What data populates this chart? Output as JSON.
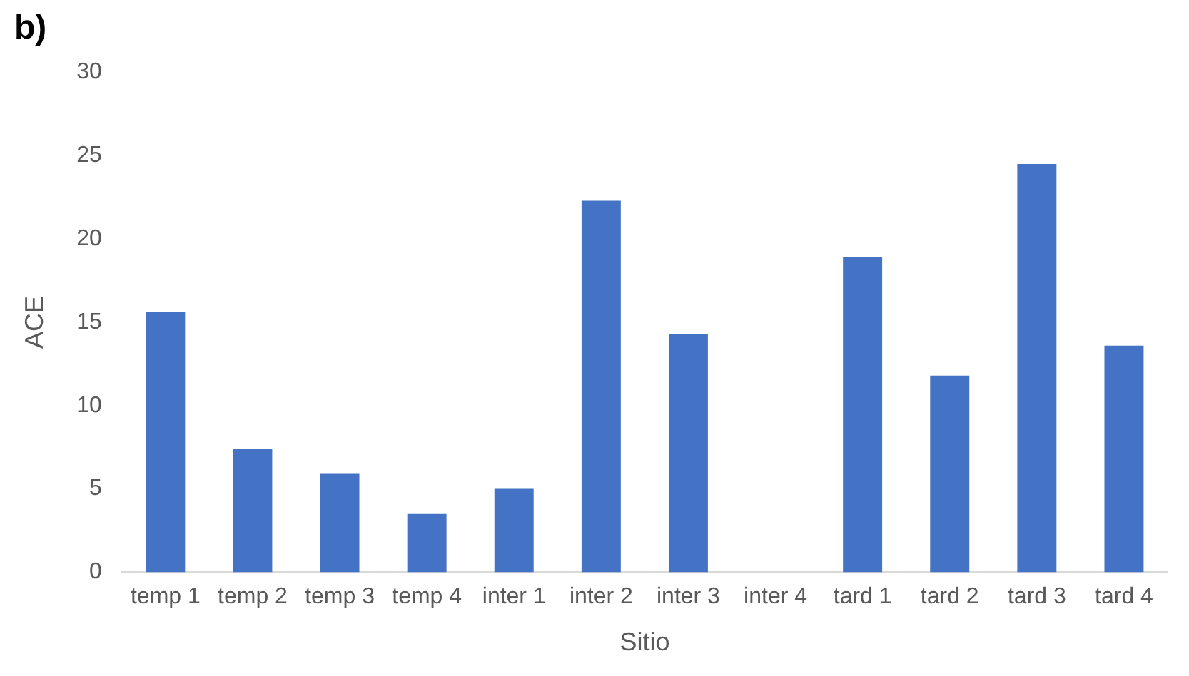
{
  "chart_data": {
    "type": "bar",
    "title": "b)",
    "xlabel": "Sitio",
    "ylabel": "ACE",
    "categories": [
      "temp 1",
      "temp 2",
      "temp 3",
      "temp 4",
      "inter 1",
      "inter 2",
      "inter 3",
      "inter 4",
      "tard 1",
      "tard 2",
      "tard 3",
      "tard 4"
    ],
    "values": [
      15.6,
      7.4,
      5.9,
      3.5,
      5.0,
      22.3,
      14.3,
      0,
      18.9,
      11.8,
      24.5,
      13.6
    ],
    "color": "#4472c4",
    "ylim": [
      0,
      30
    ],
    "yticks": [
      0,
      5,
      10,
      15,
      20,
      25,
      30
    ],
    "grid": false,
    "legend": false
  }
}
